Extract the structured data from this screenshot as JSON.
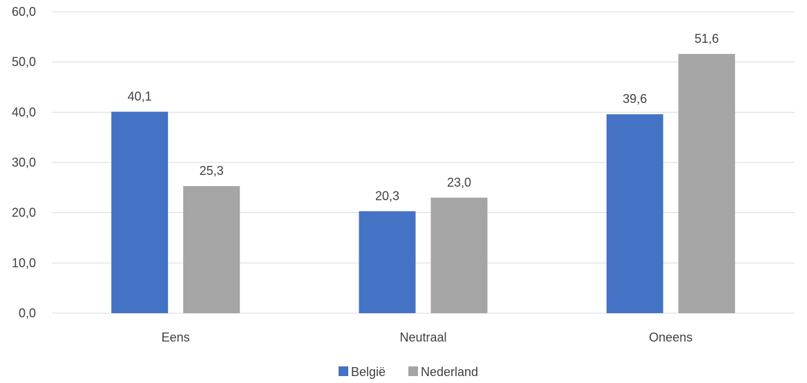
{
  "chart_data": {
    "type": "bar",
    "categories": [
      "Eens",
      "Neutraal",
      "Oneens"
    ],
    "series": [
      {
        "name": "België",
        "values": [
          40.1,
          20.3,
          39.6
        ],
        "color": "#4472c4"
      },
      {
        "name": "Nederland",
        "values": [
          25.3,
          23.0,
          51.6
        ],
        "color": "#a5a5a5"
      }
    ],
    "data_labels": [
      [
        "40,1",
        "20,3",
        "39,6"
      ],
      [
        "25,3",
        "23,0",
        "51,6"
      ]
    ],
    "yticks": [
      "0,0",
      "10,0",
      "20,0",
      "30,0",
      "40,0",
      "50,0",
      "60,0"
    ],
    "ylim": [
      0,
      60
    ],
    "title": "",
    "xlabel": "",
    "ylabel": "",
    "grid": true,
    "legend": "bottom"
  }
}
